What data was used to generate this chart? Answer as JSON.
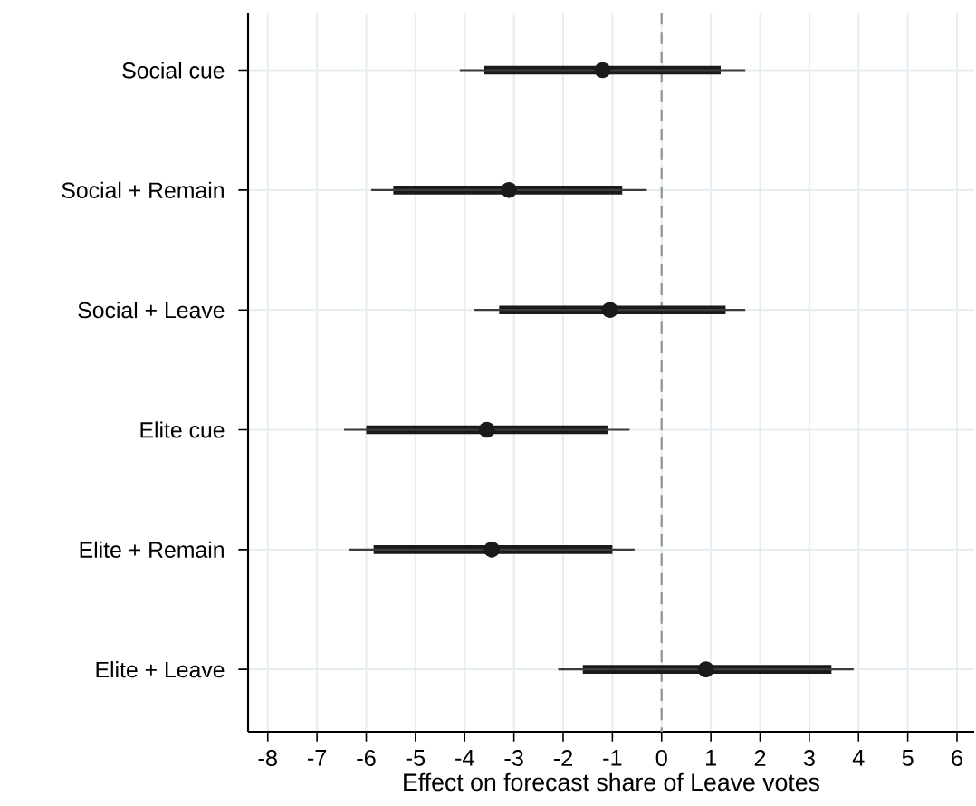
{
  "chart_data": {
    "type": "scatter",
    "orientation": "horizontal",
    "xlabel": "Effect on forecast share of Leave votes",
    "categories": [
      "Social cue",
      "Social + Remain",
      "Social + Leave",
      "Elite cue",
      "Elite + Remain",
      "Elite + Leave"
    ],
    "series": [
      {
        "type": "bar",
        "color": "#1a1a1a",
        "base": [
          -3.6,
          -5.45,
          -3.3,
          -6.0,
          -5.85,
          -1.6
        ],
        "values": [
          4.8,
          4.65,
          4.6,
          4.9,
          4.85,
          5.05
        ]
      },
      {
        "type": "scatter",
        "color": "#1a1a1a",
        "values": [
          -1.2,
          -3.1,
          -1.05,
          -3.55,
          -3.45,
          0.9
        ],
        "errors": [
          2.9,
          2.8,
          2.75,
          2.9,
          2.9,
          3.0
        ]
      }
    ],
    "xlim": [
      -8.4,
      6.35
    ],
    "xticks": [
      -8,
      -7,
      -6,
      -5,
      -4,
      -3,
      -2,
      -1,
      0,
      1,
      2,
      3,
      4,
      5,
      6
    ],
    "ref_lines": [
      {
        "axis": "x",
        "value": 0,
        "color": "#999999",
        "line_style": "dashed"
      }
    ],
    "grid": true,
    "marker": "circle"
  }
}
